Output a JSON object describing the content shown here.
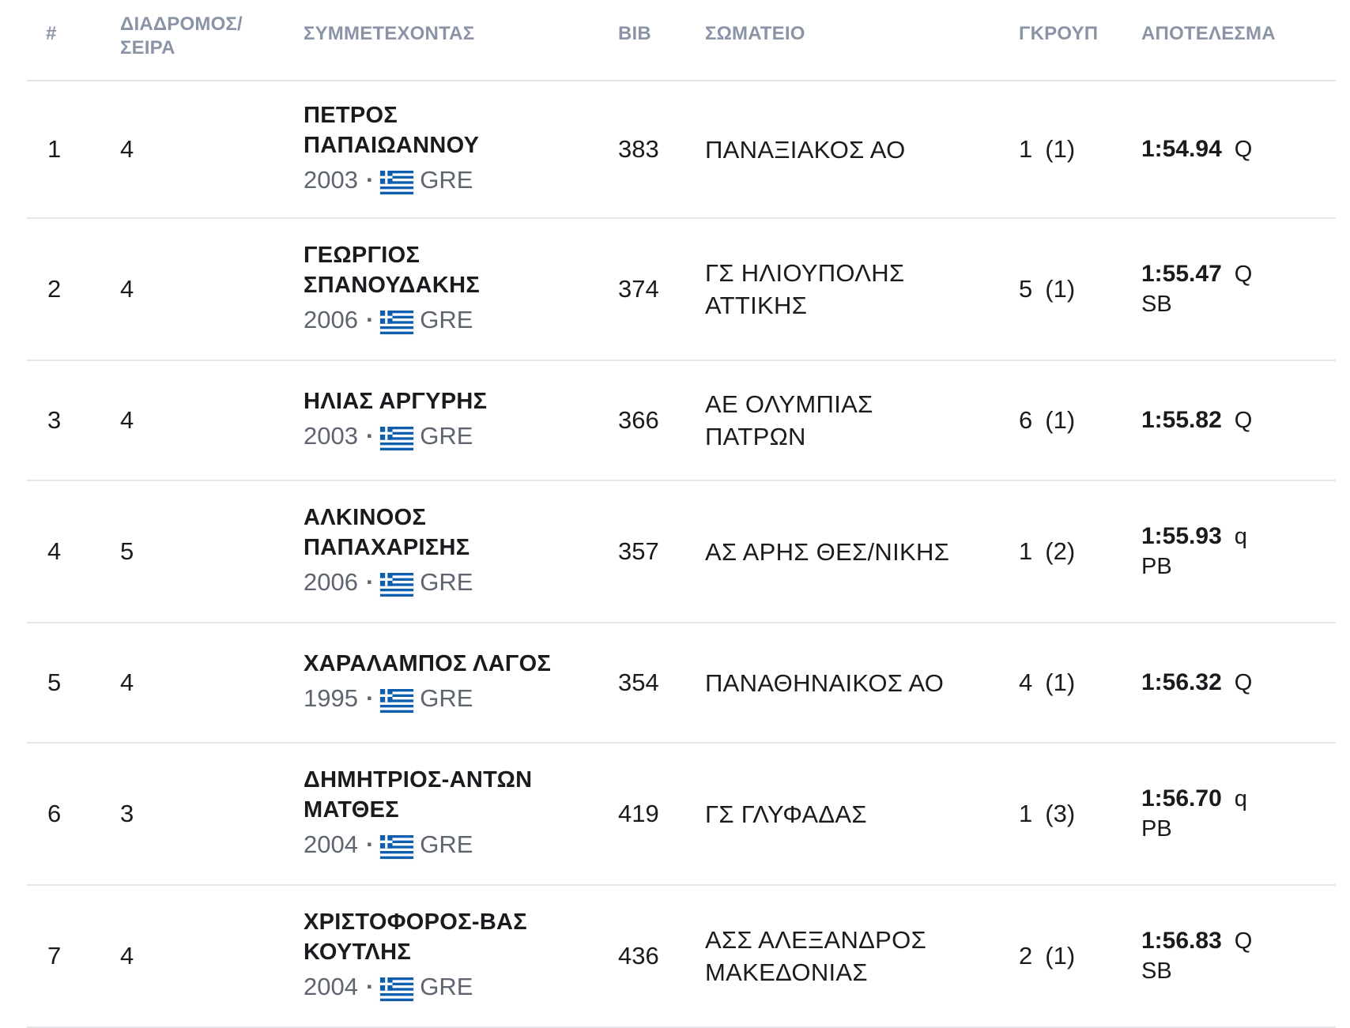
{
  "columns": {
    "rank": "#",
    "lane": "ΔΙΑΔΡΟΜΟΣ/\nΣΕΙΡΑ",
    "athlete": "ΣΥΜΜΕΤΕΧΟΝΤΑΣ",
    "bib": "BIB",
    "club": "ΣΩΜΑΤΕΙΟ",
    "group": "ΓΚΡΟΥΠ",
    "result": "ΑΠΟΤΕΛΕΣΜΑ"
  },
  "flag_icon": "greece-flag-icon",
  "colors": {
    "header_text": "#8a94a6",
    "divider": "#e4e6ea",
    "flag_blue": "#0d5eaf"
  },
  "rows": [
    {
      "rank": "1",
      "lane": "4",
      "name": "ΠΕΤΡΟΣ\nΠΑΠΑΙΩΑΝΝΟΥ",
      "year": "2003",
      "country": "GRE",
      "bib": "383",
      "club": "ΠΑΝΑΞΙΑΚΟΣ ΑΟ",
      "group": "1",
      "group_sub": "(1)",
      "time": "1:54.94",
      "qual": "Q",
      "record": ""
    },
    {
      "rank": "2",
      "lane": "4",
      "name": "ΓΕΩΡΓΙΟΣ\nΣΠΑΝΟΥΔΑΚΗΣ",
      "year": "2006",
      "country": "GRE",
      "bib": "374",
      "club": "ΓΣ ΗΛΙΟΥΠΟΛΗΣ\nΑΤΤΙΚΗΣ",
      "group": "5",
      "group_sub": "(1)",
      "time": "1:55.47",
      "qual": "Q",
      "record": "SB"
    },
    {
      "rank": "3",
      "lane": "4",
      "name": "ΗΛΙΑΣ ΑΡΓΥΡΗΣ",
      "year": "2003",
      "country": "GRE",
      "bib": "366",
      "club": "ΑΕ ΟΛΥΜΠΙΑΣ\nΠΑΤΡΩΝ",
      "group": "6",
      "group_sub": "(1)",
      "time": "1:55.82",
      "qual": "Q",
      "record": ""
    },
    {
      "rank": "4",
      "lane": "5",
      "name": "ΑΛΚΙΝΟΟΣ\nΠΑΠΑΧΑΡΙΣΗΣ",
      "year": "2006",
      "country": "GRE",
      "bib": "357",
      "club": "ΑΣ ΑΡΗΣ ΘΕΣ/ΝΙΚΗΣ",
      "group": "1",
      "group_sub": "(2)",
      "time": "1:55.93",
      "qual": "q",
      "record": "PB"
    },
    {
      "rank": "5",
      "lane": "4",
      "name": "ΧΑΡΑΛΑΜΠΟΣ ΛΑΓΟΣ",
      "year": "1995",
      "country": "GRE",
      "bib": "354",
      "club": "ΠΑΝΑΘΗΝΑΙΚΟΣ ΑΟ",
      "group": "4",
      "group_sub": "(1)",
      "time": "1:56.32",
      "qual": "Q",
      "record": ""
    },
    {
      "rank": "6",
      "lane": "3",
      "name": "ΔΗΜΗΤΡΙΟΣ-ΑΝΤΩΝ\nΜΑΤΘΕΣ",
      "year": "2004",
      "country": "GRE",
      "bib": "419",
      "club": "ΓΣ ΓΛΥΦΑΔΑΣ",
      "group": "1",
      "group_sub": "(3)",
      "time": "1:56.70",
      "qual": "q",
      "record": "PB"
    },
    {
      "rank": "7",
      "lane": "4",
      "name": "ΧΡΙΣΤΟΦΟΡΟΣ-ΒΑΣ\nΚΟΥΤΛΗΣ",
      "year": "2004",
      "country": "GRE",
      "bib": "436",
      "club": "ΑΣΣ ΑΛΕΞΑΝΔΡΟΣ\nΜΑΚΕΔΟΝΙΑΣ",
      "group": "2",
      "group_sub": "(1)",
      "time": "1:56.83",
      "qual": "Q",
      "record": "SB"
    }
  ]
}
